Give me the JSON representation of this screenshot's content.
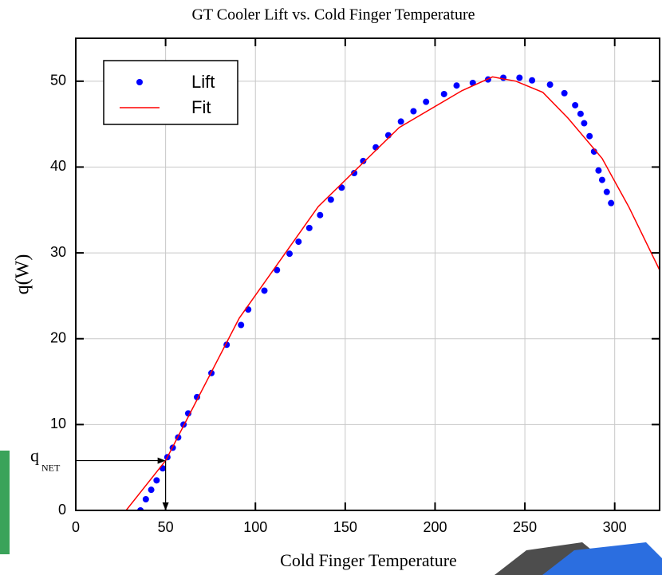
{
  "chart_data": {
    "type": "scatter",
    "title": "GT Cooler Lift vs. Cold Finger Temperature",
    "x_label": "Cold Finger Temperature",
    "y_label": "q(W)",
    "xlim": [
      0,
      325
    ],
    "ylim": [
      0,
      55
    ],
    "xticks": [
      0,
      50,
      100,
      150,
      200,
      250,
      300
    ],
    "yticks": [
      0,
      10,
      20,
      30,
      40,
      50
    ],
    "grid": true,
    "legend": "upper left",
    "series": [
      {
        "name": "Lift",
        "type": "scatter",
        "color": "#0000ff",
        "x": [
          36,
          39,
          42,
          45,
          48.4,
          51,
          54,
          57,
          60,
          62.6,
          67.5,
          75.5,
          84,
          92,
          96,
          105,
          112,
          119,
          124,
          130,
          136,
          142,
          148,
          155,
          160,
          167,
          174,
          181,
          188,
          195,
          205,
          212,
          221,
          229.5,
          238,
          247,
          254,
          264,
          272,
          278,
          281,
          283,
          286,
          288.5,
          291,
          293,
          295.6,
          298
        ],
        "values": [
          0,
          1.3,
          2.4,
          3.5,
          4.9,
          6.2,
          7.3,
          8.5,
          10,
          11.3,
          13.2,
          16,
          19.3,
          21.6,
          23.4,
          25.6,
          28,
          29.9,
          31.3,
          32.9,
          34.4,
          36.2,
          37.6,
          39.3,
          40.7,
          42.3,
          43.7,
          45.3,
          46.5,
          47.6,
          48.5,
          49.5,
          49.8,
          50.2,
          50.4,
          50.4,
          50.1,
          49.6,
          48.6,
          47.2,
          46.2,
          45.1,
          43.6,
          41.8,
          39.6,
          38.5,
          37.1,
          35.8
        ]
      },
      {
        "name": "Fit",
        "type": "line",
        "color": "#ff0000",
        "x": [
          28,
          50,
          91,
          135,
          180,
          215,
          232,
          245,
          260,
          274,
          293,
          308,
          325
        ],
        "values": [
          0,
          5.8,
          22.4,
          35.4,
          44.6,
          48.9,
          50.5,
          50,
          48.7,
          45.7,
          41,
          35.3,
          28
        ]
      }
    ],
    "annotation": {
      "text": "q",
      "subscript": "NET",
      "x": 50,
      "y": 5.8
    }
  }
}
